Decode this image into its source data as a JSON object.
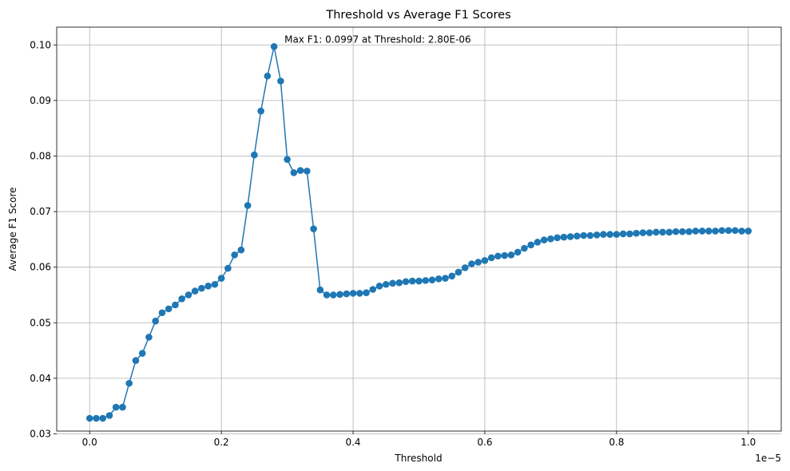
{
  "chart_data": {
    "type": "line",
    "title": "Threshold vs Average F1 Scores",
    "xlabel": "Threshold",
    "ylabel": "Average F1 Score",
    "x_offset_text": "1e−5",
    "xlim": [
      -0.05,
      1.05
    ],
    "ylim": [
      0.0305,
      0.1032
    ],
    "grid": true,
    "x_ticks": [
      0.0,
      0.2,
      0.4,
      0.6,
      0.8,
      1.0
    ],
    "x_tick_labels": [
      "0.0",
      "0.2",
      "0.4",
      "0.6",
      "0.8",
      "1.0"
    ],
    "y_ticks": [
      0.03,
      0.04,
      0.05,
      0.06,
      0.07,
      0.08,
      0.09,
      0.1
    ],
    "y_tick_labels": [
      "0.03",
      "0.04",
      "0.05",
      "0.06",
      "0.07",
      "0.08",
      "0.09",
      "0.10"
    ],
    "annotation": {
      "text": "Max F1: 0.0997 at Threshold: 2.80E-06",
      "x": 0.28,
      "y": 0.0997
    },
    "colors": {
      "series": "#1f77b4",
      "grid": "#b0b0b0"
    },
    "series": [
      {
        "marker": "circle",
        "x": [
          0.0,
          0.01,
          0.02,
          0.03,
          0.04,
          0.05,
          0.06,
          0.07,
          0.08,
          0.09,
          0.1,
          0.11,
          0.12,
          0.13,
          0.14,
          0.15,
          0.16,
          0.17,
          0.18,
          0.19,
          0.2,
          0.21,
          0.22,
          0.23,
          0.24,
          0.25,
          0.26,
          0.27,
          0.28,
          0.29,
          0.3,
          0.31,
          0.32,
          0.33,
          0.34,
          0.35,
          0.36,
          0.37,
          0.38,
          0.39,
          0.4,
          0.41,
          0.42,
          0.43,
          0.44,
          0.45,
          0.46,
          0.47,
          0.48,
          0.49,
          0.5,
          0.51,
          0.52,
          0.53,
          0.54,
          0.55,
          0.56,
          0.57,
          0.58,
          0.59,
          0.6,
          0.61,
          0.62,
          0.63,
          0.64,
          0.65,
          0.66,
          0.67,
          0.68,
          0.69,
          0.7,
          0.71,
          0.72,
          0.73,
          0.74,
          0.75,
          0.76,
          0.77,
          0.78,
          0.79,
          0.8,
          0.81,
          0.82,
          0.83,
          0.84,
          0.85,
          0.86,
          0.87,
          0.88,
          0.89,
          0.9,
          0.91,
          0.92,
          0.93,
          0.94,
          0.95,
          0.96,
          0.97,
          0.98,
          0.99,
          1.0
        ],
        "y": [
          0.0328,
          0.0328,
          0.0328,
          0.0333,
          0.0348,
          0.0348,
          0.0391,
          0.0432,
          0.0445,
          0.0474,
          0.0503,
          0.0518,
          0.0525,
          0.0532,
          0.0543,
          0.055,
          0.0557,
          0.0562,
          0.0566,
          0.0569,
          0.058,
          0.0598,
          0.0622,
          0.0631,
          0.0711,
          0.0802,
          0.0881,
          0.0944,
          0.0997,
          0.0935,
          0.0794,
          0.077,
          0.0774,
          0.0773,
          0.0669,
          0.0559,
          0.055,
          0.055,
          0.0551,
          0.0552,
          0.0553,
          0.0553,
          0.0554,
          0.056,
          0.0566,
          0.0569,
          0.0571,
          0.0572,
          0.0574,
          0.0575,
          0.0575,
          0.0576,
          0.0577,
          0.0579,
          0.058,
          0.0584,
          0.0591,
          0.0599,
          0.0606,
          0.0609,
          0.0612,
          0.0617,
          0.062,
          0.0621,
          0.0622,
          0.0627,
          0.0634,
          0.064,
          0.0645,
          0.0649,
          0.0651,
          0.0653,
          0.0654,
          0.0655,
          0.0656,
          0.0657,
          0.0657,
          0.0658,
          0.0659,
          0.0659,
          0.0659,
          0.066,
          0.066,
          0.0661,
          0.0662,
          0.0662,
          0.0663,
          0.0663,
          0.0663,
          0.0664,
          0.0664,
          0.0664,
          0.0665,
          0.0665,
          0.0665,
          0.0665,
          0.0666,
          0.0666,
          0.0666,
          0.0665,
          0.0665
        ]
      }
    ]
  }
}
